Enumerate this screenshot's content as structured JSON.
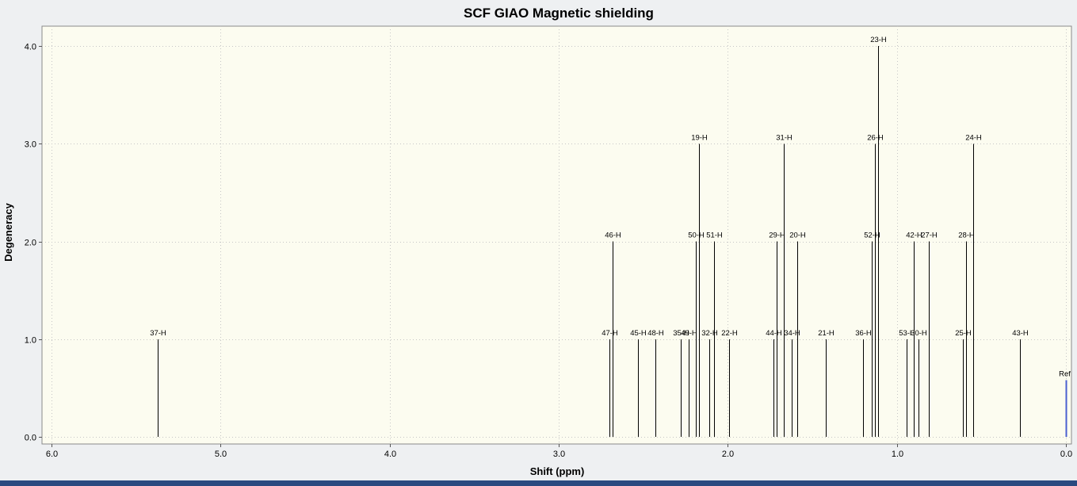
{
  "window": {
    "outer_background": "#eef0f2",
    "bottom_bar_color": "#2a4a80"
  },
  "chart_data": {
    "type": "stem",
    "title": "SCF GIAO Magnetic shielding",
    "xlabel": "Shift (ppm)",
    "ylabel": "Degeneracy",
    "x_axis_reversed": true,
    "xlim": [
      6.0,
      0.0
    ],
    "ylim": [
      0.0,
      4.25
    ],
    "x_ticks": [
      6.0,
      5.0,
      4.0,
      3.0,
      2.0,
      1.0,
      0.0
    ],
    "y_ticks": [
      0.0,
      1.0,
      2.0,
      3.0,
      4.0
    ],
    "grid": "dotted",
    "legend": "none",
    "colors": {
      "peak": "#000000",
      "ref": "#4a5fd0",
      "grid": "#c6c6c6",
      "plot_bg": "#fcfcf0",
      "outer_bg": "#eef0f2",
      "border": "#8a8a8a",
      "tick": "#555555"
    },
    "peaks": [
      {
        "label": "37-H",
        "shift": 5.37,
        "degeneracy": 1
      },
      {
        "label": "47-H",
        "shift": 2.7,
        "degeneracy": 1
      },
      {
        "label": "46-H",
        "shift": 2.68,
        "degeneracy": 2
      },
      {
        "label": "45-H",
        "shift": 2.53,
        "degeneracy": 1
      },
      {
        "label": "48-H",
        "shift": 2.43,
        "degeneracy": 1
      },
      {
        "label": "35-H",
        "shift": 2.28,
        "degeneracy": 1
      },
      {
        "label": "49-H",
        "shift": 2.23,
        "degeneracy": 1
      },
      {
        "label": "50-H",
        "shift": 2.19,
        "degeneracy": 2
      },
      {
        "label": "19-H",
        "shift": 2.17,
        "degeneracy": 3
      },
      {
        "label": "32-H",
        "shift": 2.11,
        "degeneracy": 1
      },
      {
        "label": "51-H",
        "shift": 2.08,
        "degeneracy": 2
      },
      {
        "label": "22-H",
        "shift": 1.99,
        "degeneracy": 1
      },
      {
        "label": "44-H",
        "shift": 1.73,
        "degeneracy": 1
      },
      {
        "label": "29-H",
        "shift": 1.71,
        "degeneracy": 2
      },
      {
        "label": "31-H",
        "shift": 1.67,
        "degeneracy": 3
      },
      {
        "label": "34-H",
        "shift": 1.62,
        "degeneracy": 1
      },
      {
        "label": "20-H",
        "shift": 1.59,
        "degeneracy": 2
      },
      {
        "label": "21-H",
        "shift": 1.42,
        "degeneracy": 1
      },
      {
        "label": "36-H",
        "shift": 1.2,
        "degeneracy": 1
      },
      {
        "label": "52-H",
        "shift": 1.15,
        "degeneracy": 2
      },
      {
        "label": "26-H",
        "shift": 1.13,
        "degeneracy": 3
      },
      {
        "label": "23-H",
        "shift": 1.11,
        "degeneracy": 4
      },
      {
        "label": "53-H",
        "shift": 0.94,
        "degeneracy": 1
      },
      {
        "label": "42-H",
        "shift": 0.9,
        "degeneracy": 2
      },
      {
        "label": "30-H",
        "shift": 0.87,
        "degeneracy": 1
      },
      {
        "label": "27-H",
        "shift": 0.81,
        "degeneracy": 2
      },
      {
        "label": "25-H",
        "shift": 0.61,
        "degeneracy": 1
      },
      {
        "label": "28-H",
        "shift": 0.59,
        "degeneracy": 2
      },
      {
        "label": "24-H",
        "shift": 0.55,
        "degeneracy": 3
      },
      {
        "label": "43-H",
        "shift": 0.27,
        "degeneracy": 1
      }
    ],
    "ref": {
      "label": "Ref",
      "shift": 0.0,
      "height": 0.58
    }
  }
}
